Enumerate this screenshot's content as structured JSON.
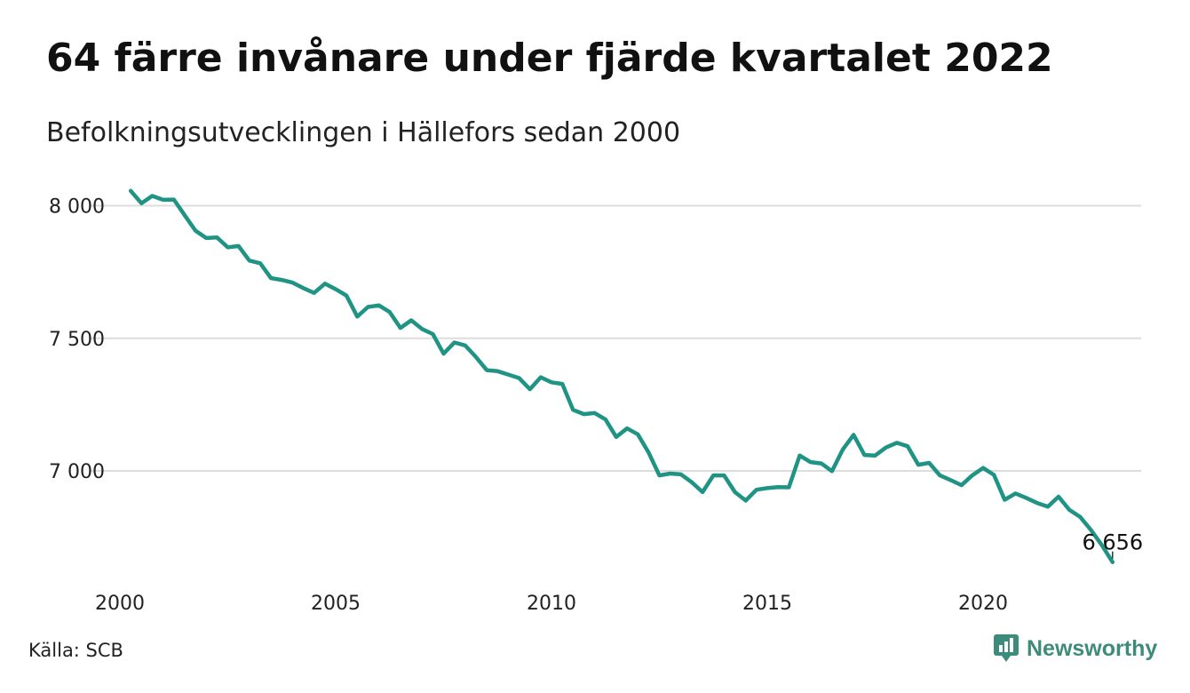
{
  "header": {
    "title": "64 färre invånare under fjärde kvartalet 2022",
    "subtitle": "Befolkningsutvecklingen i Hällefors sedan 2000"
  },
  "footer": {
    "source": "Källa: SCB",
    "brand": "Newsworthy",
    "brand_icon": "newsworthy-logo-icon"
  },
  "colors": {
    "line": "#1f9484",
    "grid": "#dddddd",
    "brand": "#3d8b7a"
  },
  "chart_data": {
    "type": "line",
    "title": "64 färre invånare under fjärde kvartalet 2022",
    "subtitle": "Befolkningsutvecklingen i Hällefors sedan 2000",
    "xlim": [
      2000,
      2023
    ],
    "ylim": [
      6620,
      8070
    ],
    "x_ticks": [
      2000,
      2005,
      2010,
      2015,
      2020
    ],
    "x_tick_labels": [
      "2000",
      "2005",
      "2010",
      "2015",
      "2020"
    ],
    "y_ticks": [
      7000,
      7500,
      8000
    ],
    "y_tick_labels": [
      "7 000",
      "7 500",
      "8 000"
    ],
    "grid": true,
    "end_label": "6 656",
    "series": [
      {
        "x": [
          2000.25,
          2000.5,
          2000.75,
          2001.0,
          2001.25,
          2001.5,
          2001.75,
          2002.0,
          2002.25,
          2002.5,
          2002.75,
          2003.0,
          2003.25,
          2003.5,
          2003.75,
          2004.0,
          2004.25,
          2004.5,
          2004.75,
          2005.0,
          2005.25,
          2005.5,
          2005.75,
          2006.0,
          2006.25,
          2006.5,
          2006.75,
          2007.0,
          2007.25,
          2007.5,
          2007.75,
          2008.0,
          2008.25,
          2008.5,
          2008.75,
          2009.0,
          2009.25,
          2009.5,
          2009.75,
          2010.0,
          2010.25,
          2010.5,
          2010.75,
          2011.0,
          2011.25,
          2011.5,
          2011.75,
          2012.0,
          2012.25,
          2012.5,
          2012.75,
          2013.0,
          2013.25,
          2013.5,
          2013.75,
          2014.0,
          2014.25,
          2014.5,
          2014.75,
          2015.0,
          2015.25,
          2015.5,
          2015.75,
          2016.0,
          2016.25,
          2016.5,
          2016.75,
          2017.0,
          2017.25,
          2017.5,
          2017.75,
          2018.0,
          2018.25,
          2018.5,
          2018.75,
          2019.0,
          2019.25,
          2019.5,
          2019.75,
          2020.0,
          2020.25,
          2020.5,
          2020.75,
          2021.0,
          2021.25,
          2021.5,
          2021.75,
          2022.0,
          2022.25,
          2022.5,
          2022.75,
          2023.0
        ],
        "values": [
          8056,
          8009,
          8037,
          8022,
          8023,
          7964,
          7906,
          7878,
          7880,
          7843,
          7848,
          7793,
          7783,
          7727,
          7720,
          7710,
          7689,
          7671,
          7706,
          7685,
          7661,
          7582,
          7618,
          7624,
          7599,
          7539,
          7568,
          7535,
          7516,
          7442,
          7484,
          7473,
          7429,
          7380,
          7376,
          7363,
          7350,
          7308,
          7353,
          7334,
          7328,
          7230,
          7214,
          7218,
          7194,
          7128,
          7160,
          7138,
          7069,
          6983,
          6990,
          6987,
          6957,
          6920,
          6983,
          6983,
          6920,
          6888,
          6929,
          6935,
          6939,
          6938,
          7058,
          7033,
          7028,
          6999,
          7081,
          7136,
          7060,
          7058,
          7088,
          7106,
          7093,
          7023,
          7030,
          6983,
          6965,
          6946,
          6983,
          7011,
          6985,
          6891,
          6915,
          6898,
          6879,
          6865,
          6903,
          6853,
          6826,
          6777,
          6720,
          6656
        ]
      }
    ]
  }
}
